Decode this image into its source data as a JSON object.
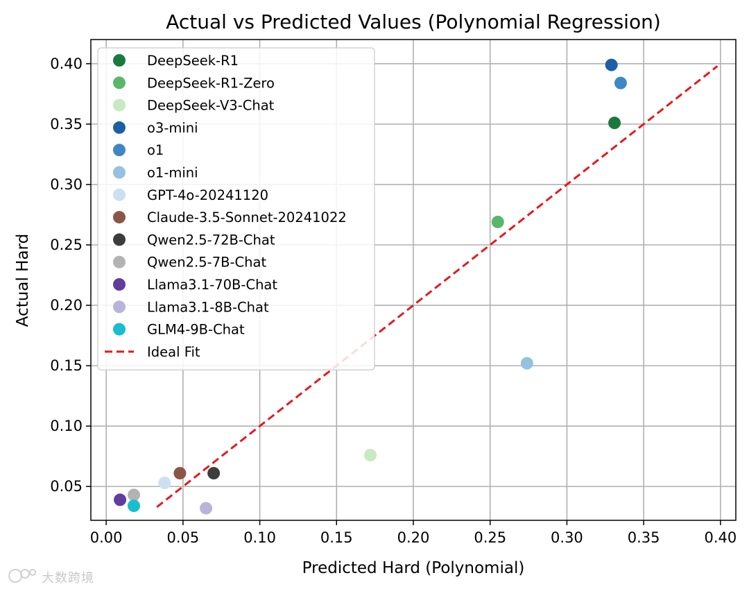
{
  "chart_data": {
    "type": "scatter",
    "title": "Actual vs Predicted Values (Polynomial Regression)",
    "xlabel": "Predicted Hard (Polynomial)",
    "ylabel": "Actual Hard",
    "xlim": [
      -0.01,
      0.41
    ],
    "ylim": [
      0.022,
      0.42
    ],
    "xticks": [
      0.0,
      0.05,
      0.1,
      0.15,
      0.2,
      0.25,
      0.3,
      0.35,
      0.4
    ],
    "xtick_labels": [
      "0.00",
      "0.05",
      "0.10",
      "0.15",
      "0.20",
      "0.25",
      "0.30",
      "0.35",
      "0.40"
    ],
    "yticks": [
      0.05,
      0.1,
      0.15,
      0.2,
      0.25,
      0.3,
      0.35,
      0.4
    ],
    "ytick_labels": [
      "0.05",
      "0.10",
      "0.15",
      "0.20",
      "0.25",
      "0.30",
      "0.35",
      "0.40"
    ],
    "grid": true,
    "legend_position": "upper-left",
    "series": [
      {
        "name": "DeepSeek-R1",
        "color": "#1a7a3e",
        "points": [
          [
            0.331,
            0.351
          ]
        ]
      },
      {
        "name": "DeepSeek-R1-Zero",
        "color": "#5ab769",
        "points": [
          [
            0.255,
            0.269
          ]
        ]
      },
      {
        "name": "DeepSeek-V3-Chat",
        "color": "#c9e9c1",
        "points": [
          [
            0.172,
            0.076
          ]
        ]
      },
      {
        "name": "o3-mini",
        "color": "#1c5fa6",
        "points": [
          [
            0.329,
            0.399
          ]
        ]
      },
      {
        "name": "o1",
        "color": "#3e87c4",
        "points": [
          [
            0.335,
            0.384
          ]
        ]
      },
      {
        "name": "o1-mini",
        "color": "#94c2e0",
        "points": [
          [
            0.274,
            0.152
          ]
        ]
      },
      {
        "name": "GPT-4o-20241120",
        "color": "#cde0f1",
        "points": [
          [
            0.038,
            0.053
          ]
        ]
      },
      {
        "name": "Claude-3.5-Sonnet-20241022",
        "color": "#8c5647",
        "points": [
          [
            0.048,
            0.061
          ]
        ]
      },
      {
        "name": "Qwen2.5-72B-Chat",
        "color": "#3d3d3d",
        "points": [
          [
            0.07,
            0.061
          ]
        ]
      },
      {
        "name": "Qwen2.5-7B-Chat",
        "color": "#b3b3b3",
        "points": [
          [
            0.018,
            0.043
          ]
        ]
      },
      {
        "name": "Llama3.1-70B-Chat",
        "color": "#5f3e9e",
        "points": [
          [
            0.009,
            0.039
          ]
        ]
      },
      {
        "name": "Llama3.1-8B-Chat",
        "color": "#b8b4d9",
        "points": [
          [
            0.065,
            0.032
          ]
        ]
      },
      {
        "name": "GLM4-9B-Chat",
        "color": "#17bed0",
        "points": [
          [
            0.018,
            0.034
          ]
        ]
      }
    ],
    "reference_line": {
      "name": "Ideal Fit",
      "color": "#e8181b",
      "style": "dashed",
      "from": [
        0.033,
        0.033
      ],
      "to": [
        0.398,
        0.398
      ]
    }
  },
  "watermark": {
    "text": "大数跨境"
  }
}
